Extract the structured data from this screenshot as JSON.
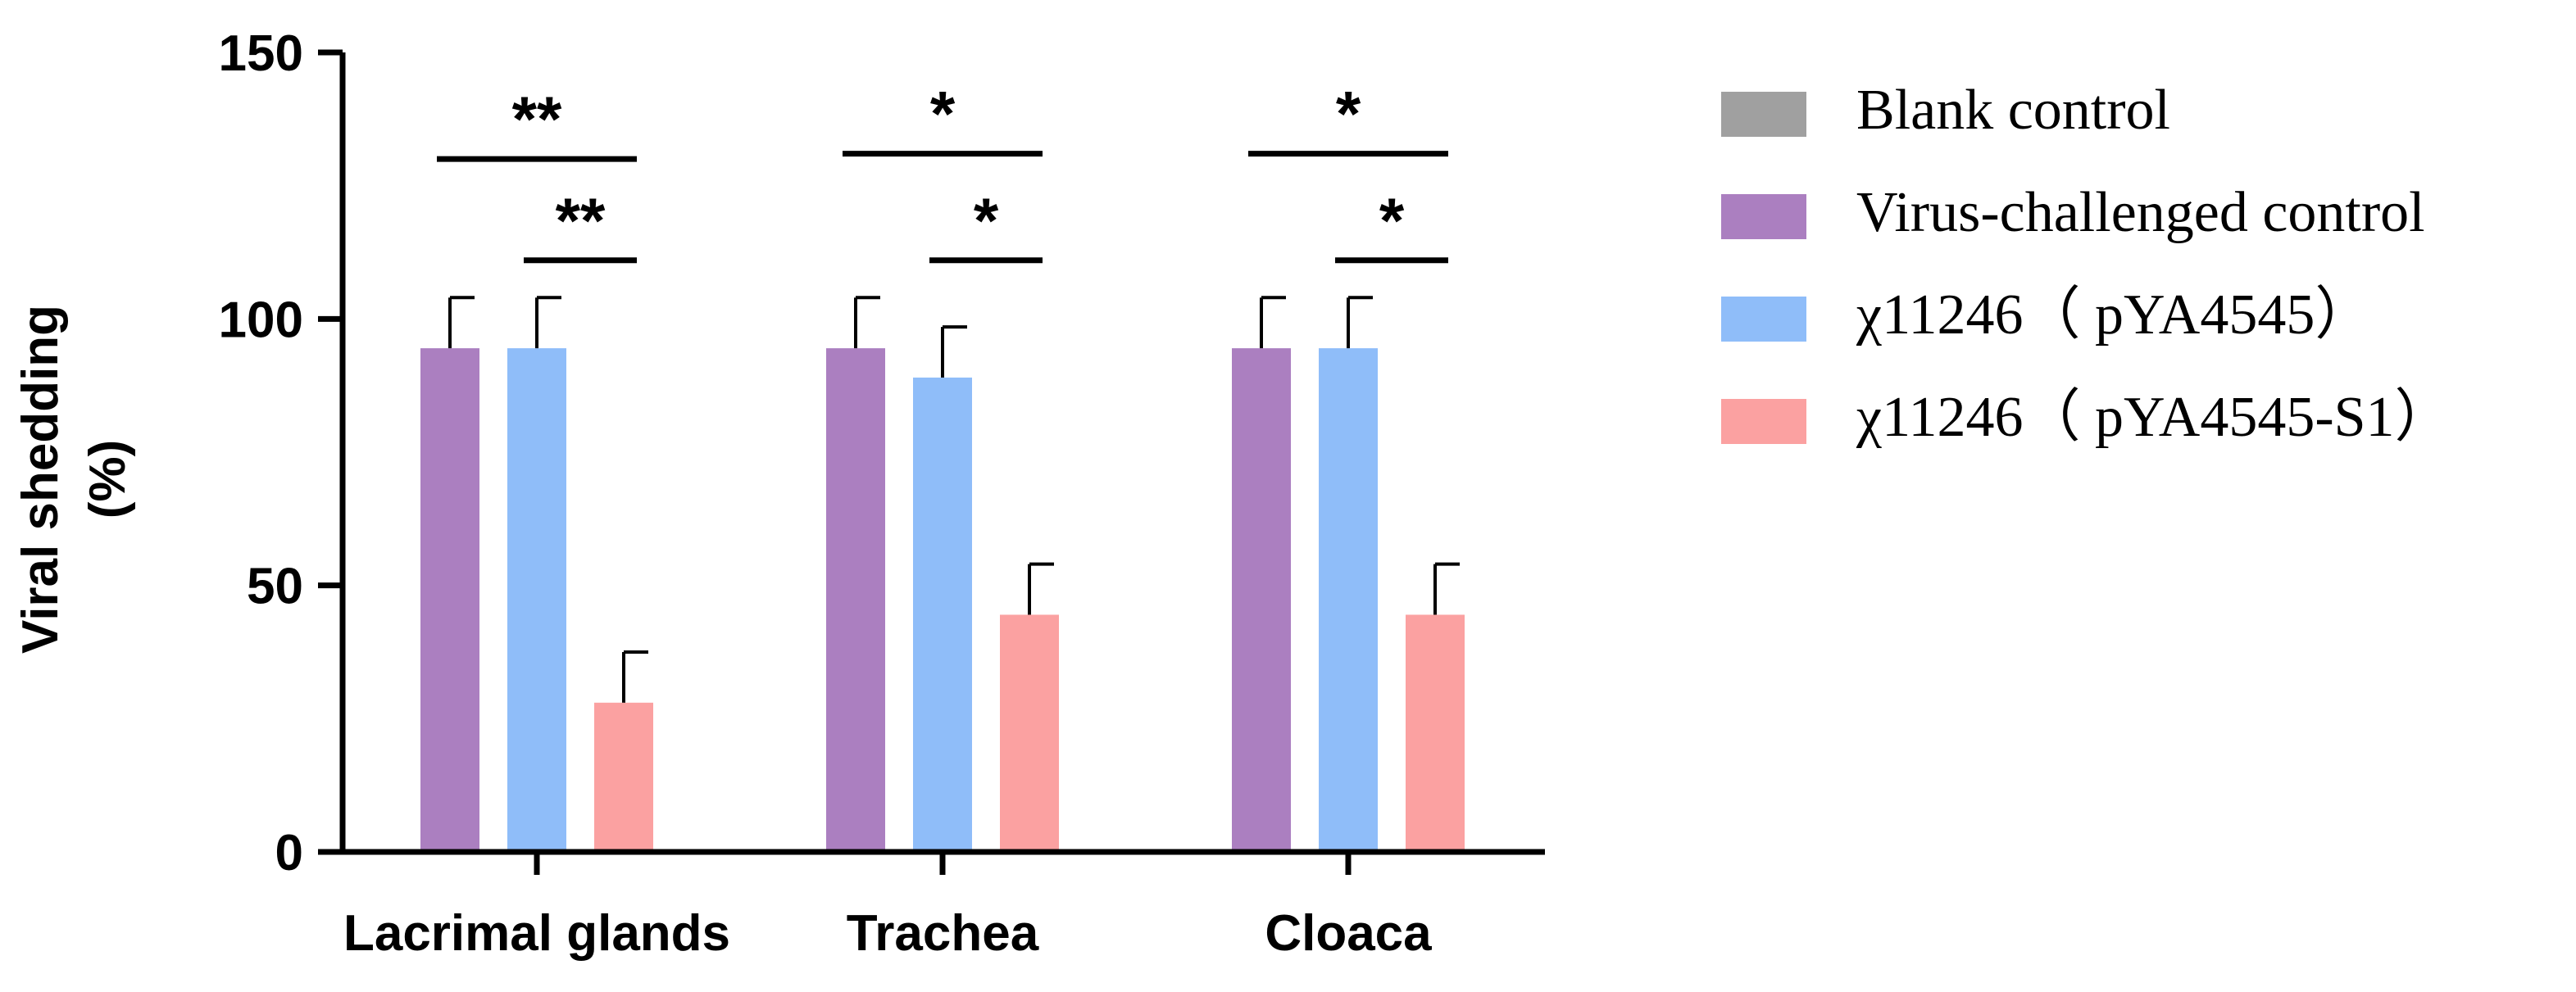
{
  "chart_data": {
    "type": "bar",
    "title": "",
    "xlabel": "",
    "ylabel": "Viral shedding",
    "ylabel_unit": "(%)",
    "ylim": [
      0,
      150
    ],
    "yticks": [
      0,
      50,
      100,
      150
    ],
    "grid": false,
    "legend_position": "right",
    "categories": [
      "Lacrimal glands",
      "Trachea",
      "Cloaca"
    ],
    "series": [
      {
        "name": "Blank control",
        "color": "#a0a0a0",
        "values": [
          0,
          0,
          0
        ],
        "errors": [
          0,
          0,
          0
        ]
      },
      {
        "name": "Virus-challenged control",
        "color": "#ab7fc0",
        "values": [
          94.5,
          94.5,
          94.5
        ],
        "errors": [
          9.5,
          9.5,
          9.5
        ]
      },
      {
        "name": "χ11246（ pYA4545）",
        "color": "#8fbdf9",
        "values": [
          94.5,
          89,
          94.5
        ],
        "errors": [
          9.5,
          9.5,
          9.5
        ]
      },
      {
        "name": "χ11246（ pYA4545-S1）",
        "color": "#fba1a1",
        "values": [
          28,
          44.5,
          44.5
        ],
        "errors": [
          9.5,
          9.5,
          9.5
        ]
      }
    ],
    "significance": [
      {
        "category": 0,
        "from_series": 1,
        "to_series": 3,
        "label": "**",
        "level": 130
      },
      {
        "category": 0,
        "from_series": 2,
        "to_series": 3,
        "label": "**",
        "level": 111
      },
      {
        "category": 1,
        "from_series": 1,
        "to_series": 3,
        "label": "*",
        "level": 131
      },
      {
        "category": 1,
        "from_series": 2,
        "to_series": 3,
        "label": "*",
        "level": 111
      },
      {
        "category": 2,
        "from_series": 1,
        "to_series": 3,
        "label": "*",
        "level": 131
      },
      {
        "category": 2,
        "from_series": 2,
        "to_series": 3,
        "label": "*",
        "level": 111
      }
    ]
  }
}
